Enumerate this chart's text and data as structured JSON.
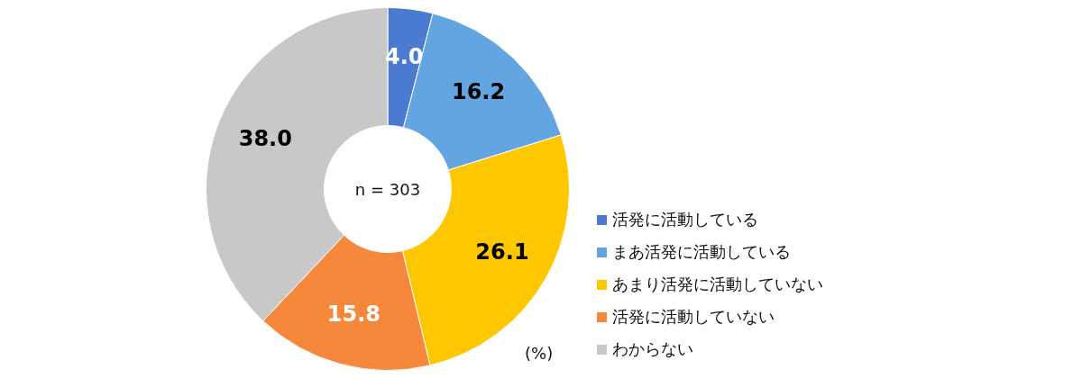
{
  "chart_data": {
    "type": "donut",
    "categories": [
      "活発に活動している",
      "まあ活発に活動している",
      "あまり活発に活動していない",
      "活発に活動していない",
      "わからない"
    ],
    "values": [
      4.0,
      16.2,
      26.1,
      15.8,
      38.0
    ],
    "colors": [
      "#4a7bd0",
      "#62a5e0",
      "#ffc700",
      "#f5883a",
      "#c8c8c8"
    ],
    "value_labels": [
      "4.0",
      "16.2",
      "26.1",
      "15.8",
      "38.0"
    ],
    "legend": "bottom right",
    "annotations": [
      "n = 303",
      "(%)"
    ]
  }
}
